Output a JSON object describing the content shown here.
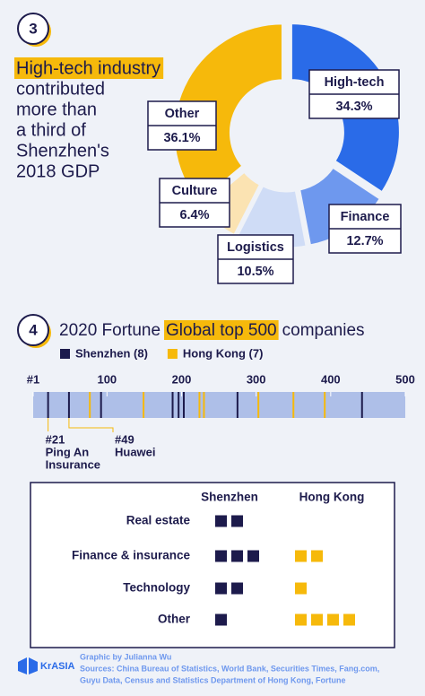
{
  "chart_data": [
    {
      "type": "donut",
      "badge": 3,
      "title_highlight": "High-tech industry",
      "title_lines": [
        "contributed",
        "more than",
        "a third of",
        "Shenzhen's",
        "2018 GDP"
      ],
      "categories": [
        "High-tech",
        "Finance",
        "Logistics",
        "Culture",
        "Other"
      ],
      "values": [
        34.3,
        12.7,
        10.5,
        6.4,
        36.1
      ],
      "value_labels": [
        "34.3%",
        "12.7%",
        "10.5%",
        "6.4%",
        "36.1%"
      ],
      "colors": [
        "#2a6be8",
        "#6e98ee",
        "#cfdcf6",
        "#fbe3b2",
        "#f6b90b"
      ]
    },
    {
      "type": "rank_strip",
      "badge": 4,
      "title_parts": [
        "2020 Fortune",
        "Global top 500",
        "companies"
      ],
      "series": [
        {
          "name": "Shenzhen (8)",
          "color": "#1d1b4c",
          "x": [
            21,
            49,
            92,
            188,
            196,
            203,
            275,
            442
          ]
        },
        {
          "name": "Hong Kong (7)",
          "color": "#f6b90b",
          "x": [
            77,
            149,
            224,
            230,
            303,
            350,
            392
          ]
        }
      ],
      "xlim": [
        1,
        500
      ],
      "xticks": [
        {
          "value": 1,
          "label": "#1"
        },
        100,
        200,
        300,
        400,
        500
      ],
      "annotations": [
        {
          "x": 21,
          "label": "#21",
          "text_lines": [
            "Ping An",
            "Insurance"
          ]
        },
        {
          "x": 49,
          "label": "#49",
          "text_lines": [
            "Huawei"
          ]
        }
      ]
    },
    {
      "type": "unit_grid",
      "categories": [
        "Real estate",
        "Finance & insurance",
        "Technology",
        "Other"
      ],
      "series": [
        {
          "name": "Shenzhen",
          "color": "#1d1b4c",
          "values": [
            2,
            3,
            2,
            1
          ]
        },
        {
          "name": "Hong Kong",
          "color": "#f6b90b",
          "values": [
            0,
            2,
            1,
            4
          ]
        }
      ]
    }
  ],
  "footer": {
    "brand": "KrASIA",
    "credit": "Graphic by Julianna Wu",
    "sources_lines": [
      "Sources: China Bureau of Statistics, World Bank, Securities Times, Fang.com,",
      "Guyu Data, Census and Statistics Department of Hong Kong, Fortune"
    ]
  }
}
